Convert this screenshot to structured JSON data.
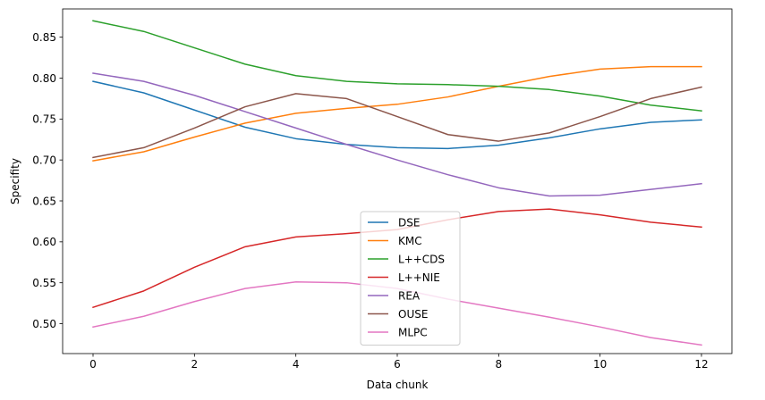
{
  "chart_data": {
    "type": "line",
    "xlabel": "Data chunk",
    "ylabel": "Specifity",
    "xlim": [
      -0.6,
      12.6
    ],
    "ylim": [
      0.4635,
      0.8845
    ],
    "xticks": [
      0,
      2,
      4,
      6,
      8,
      10,
      12
    ],
    "yticks": [
      0.5,
      0.55,
      0.6,
      0.65,
      0.7,
      0.75,
      0.8,
      0.85
    ],
    "ytick_labels": [
      "0.50",
      "0.55",
      "0.60",
      "0.65",
      "0.70",
      "0.75",
      "0.80",
      "0.85"
    ],
    "legend_position": "lower-center",
    "x": [
      0,
      1,
      2,
      3,
      4,
      5,
      6,
      7,
      8,
      9,
      10,
      11,
      12
    ],
    "series": [
      {
        "name": "DSE",
        "color": "#1f77b4",
        "values": [
          0.796,
          0.782,
          0.761,
          0.74,
          0.726,
          0.719,
          0.715,
          0.714,
          0.718,
          0.727,
          0.738,
          0.746,
          0.749
        ]
      },
      {
        "name": "KMC",
        "color": "#ff7f0e",
        "values": [
          0.699,
          0.71,
          0.728,
          0.745,
          0.757,
          0.763,
          0.768,
          0.777,
          0.79,
          0.802,
          0.811,
          0.814,
          0.814
        ]
      },
      {
        "name": "L++CDS",
        "color": "#2ca02c",
        "values": [
          0.87,
          0.857,
          0.837,
          0.817,
          0.803,
          0.796,
          0.793,
          0.792,
          0.79,
          0.786,
          0.778,
          0.767,
          0.76
        ]
      },
      {
        "name": "L++NIE",
        "color": "#d62728",
        "values": [
          0.52,
          0.54,
          0.569,
          0.594,
          0.606,
          0.61,
          0.615,
          0.627,
          0.637,
          0.64,
          0.633,
          0.624,
          0.618
        ]
      },
      {
        "name": "REA",
        "color": "#9467bd",
        "values": [
          0.806,
          0.796,
          0.779,
          0.759,
          0.739,
          0.719,
          0.7,
          0.682,
          0.666,
          0.656,
          0.657,
          0.664,
          0.671
        ]
      },
      {
        "name": "OUSE",
        "color": "#8c564b",
        "values": [
          0.703,
          0.715,
          0.739,
          0.765,
          0.781,
          0.775,
          0.753,
          0.731,
          0.723,
          0.733,
          0.753,
          0.775,
          0.789
        ]
      },
      {
        "name": "MLPC",
        "color": "#e377c2",
        "values": [
          0.496,
          0.509,
          0.527,
          0.543,
          0.551,
          0.55,
          0.543,
          0.53,
          0.519,
          0.508,
          0.496,
          0.483,
          0.474
        ]
      }
    ]
  }
}
